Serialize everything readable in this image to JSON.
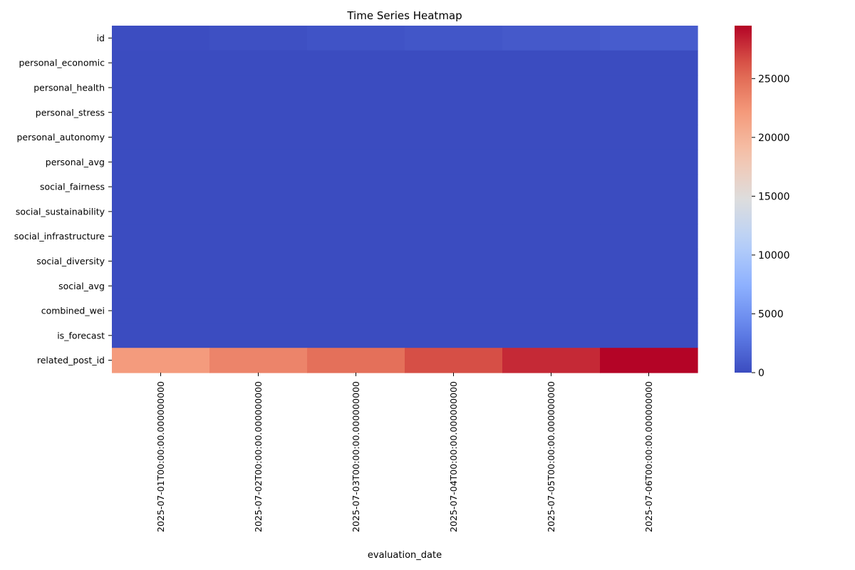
{
  "chart_data": {
    "type": "heatmap",
    "title": "Time Series Heatmap",
    "xlabel": "evaluation_date",
    "ylabel": "",
    "x": [
      "2025-07-01T00:00:00.000000000",
      "2025-07-02T00:00:00.000000000",
      "2025-07-03T00:00:00.000000000",
      "2025-07-04T00:00:00.000000000",
      "2025-07-05T00:00:00.000000000",
      "2025-07-06T00:00:00.000000000"
    ],
    "y": [
      "id",
      "personal_economic",
      "personal_health",
      "personal_stress",
      "personal_autonomy",
      "personal_avg",
      "social_fairness",
      "social_sustainability",
      "social_infrastructure",
      "social_diversity",
      "social_avg",
      "combined_wei",
      "is_forecast",
      "related_post_id"
    ],
    "values": [
      [
        100,
        300,
        500,
        700,
        900,
        1100
      ],
      [
        0,
        0,
        0,
        0,
        0,
        0
      ],
      [
        0,
        0,
        0,
        0,
        0,
        0
      ],
      [
        0,
        0,
        0,
        0,
        0,
        0
      ],
      [
        0,
        0,
        0,
        0,
        0,
        0
      ],
      [
        0,
        0,
        0,
        0,
        0,
        0
      ],
      [
        0,
        0,
        0,
        0,
        0,
        0
      ],
      [
        0,
        0,
        0,
        0,
        0,
        0
      ],
      [
        0,
        0,
        0,
        0,
        0,
        0
      ],
      [
        0,
        0,
        0,
        0,
        0,
        0
      ],
      [
        0,
        0,
        0,
        0,
        0,
        0
      ],
      [
        0,
        0,
        0,
        0,
        0,
        0
      ],
      [
        0,
        0,
        0,
        0,
        0,
        0
      ],
      [
        22000,
        23500,
        24800,
        26500,
        28000,
        29500
      ]
    ],
    "colormap": "coolwarm",
    "vmin": 0,
    "vmax": 29500,
    "colorbar": {
      "ticks": [
        0,
        5000,
        10000,
        15000,
        20000,
        25000
      ]
    },
    "grid": false,
    "legend": "colorbar-right"
  }
}
